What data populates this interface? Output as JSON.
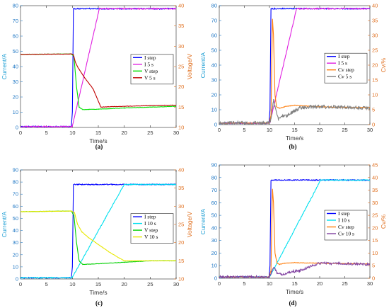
{
  "chart_data": [
    {
      "type": "line",
      "panel_label": "(a)",
      "xlabel": "Time/s",
      "ylabel_left": "Current/A",
      "ylabel_right": "Voltage/V",
      "xlim": [
        0,
        30
      ],
      "xticks": [
        0,
        5,
        10,
        15,
        20,
        25,
        30
      ],
      "ylim_left": [
        0,
        80
      ],
      "yticks_left": [
        0,
        10,
        20,
        30,
        40,
        50,
        60,
        70,
        80
      ],
      "ylim_right": [
        10,
        40
      ],
      "yticks_right": [
        10,
        15,
        20,
        25,
        30,
        35,
        40
      ],
      "legend_position": "right",
      "series": [
        {
          "name": "I step",
          "axis": "left",
          "color": "#0000ff",
          "noise": 0.4,
          "x": [
            0,
            9.8,
            10.0,
            10.2,
            30
          ],
          "y": [
            0.5,
            0.5,
            10,
            78,
            78
          ]
        },
        {
          "name": "I 5 s",
          "axis": "left",
          "color": "#e020e0",
          "noise": 0.4,
          "x": [
            0,
            9.8,
            10.0,
            15.2,
            30
          ],
          "y": [
            0.5,
            0.5,
            1,
            78,
            78
          ]
        },
        {
          "name": "V step",
          "axis": "right",
          "color": "#00e000",
          "noise": 0.05,
          "x": [
            0,
            9.8,
            10.3,
            10.8,
            11.3,
            12,
            15,
            20,
            25,
            30
          ],
          "y": [
            28,
            28.1,
            27.5,
            20,
            15,
            14.4,
            14.5,
            14.8,
            15,
            15.2
          ]
        },
        {
          "name": "V 5 s",
          "axis": "right",
          "color": "#c00000",
          "noise": 0.05,
          "x": [
            0,
            9.8,
            10.2,
            10.6,
            11.2,
            12.5,
            14,
            15.5,
            17,
            20,
            25,
            30
          ],
          "y": [
            28,
            28.1,
            27.9,
            26,
            24.5,
            22,
            19.5,
            15,
            15.1,
            15.2,
            15.4,
            15.5
          ]
        }
      ]
    },
    {
      "type": "line",
      "panel_label": "(b)",
      "xlabel": "Time/s",
      "ylabel_left": "Current/A",
      "ylabel_right": "Cv/%",
      "xlim": [
        0,
        30
      ],
      "xticks": [
        0,
        5,
        10,
        15,
        20,
        25,
        30
      ],
      "ylim_left": [
        0,
        80
      ],
      "yticks_left": [
        0,
        10,
        20,
        30,
        40,
        50,
        60,
        70,
        80
      ],
      "ylim_right": [
        0,
        40
      ],
      "yticks_right": [
        0,
        5,
        10,
        15,
        20,
        25,
        30,
        35,
        40
      ],
      "legend_position": "right",
      "series": [
        {
          "name": "I step",
          "axis": "left",
          "color": "#0000ff",
          "noise": 0.4,
          "x": [
            0,
            9.9,
            10.1,
            10.3,
            30
          ],
          "y": [
            1,
            1,
            10,
            78,
            78
          ]
        },
        {
          "name": "I 5 s",
          "axis": "left",
          "color": "#e020e0",
          "noise": 0.4,
          "x": [
            0,
            9.9,
            10.1,
            15.4,
            30
          ],
          "y": [
            1,
            1,
            1.5,
            78,
            78
          ]
        },
        {
          "name": "Cv step",
          "axis": "right",
          "color": "#ff7f0e",
          "noise": 0.1,
          "x": [
            0,
            9.9,
            10.3,
            10.6,
            10.8,
            11.1,
            11.4,
            12,
            13,
            15,
            20,
            25,
            30
          ],
          "y": [
            0.5,
            0.5,
            3,
            35.5,
            30,
            10,
            6,
            5.5,
            6,
            6.5,
            6,
            5.8,
            5.7
          ]
        },
        {
          "name": "Cv 5 s",
          "axis": "right",
          "color": "#808080",
          "noise": 0.6,
          "x": [
            0,
            9.9,
            10.3,
            10.8,
            11.2,
            11.8,
            12.5,
            13.5,
            14.5,
            16,
            18,
            20,
            25,
            30
          ],
          "y": [
            0.5,
            0.5,
            2,
            8,
            5,
            1.5,
            3,
            3,
            4,
            5.5,
            6,
            6,
            5.8,
            5.6
          ]
        }
      ]
    },
    {
      "type": "line",
      "panel_label": "(c)",
      "xlabel": "Time/s",
      "ylabel_left": "Current/A",
      "ylabel_right": "Voltage/V",
      "xlim": [
        0,
        30
      ],
      "xticks": [
        0,
        5,
        10,
        15,
        20,
        25,
        30
      ],
      "ylim_left": [
        0,
        90
      ],
      "yticks_left": [
        0,
        10,
        20,
        30,
        40,
        50,
        60,
        70,
        80,
        90
      ],
      "ylim_right": [
        10,
        40
      ],
      "yticks_right": [
        10,
        15,
        20,
        25,
        30,
        35,
        40
      ],
      "legend_position": "right",
      "series": [
        {
          "name": "I step",
          "axis": "left",
          "color": "#0000ff",
          "noise": 0.4,
          "x": [
            0,
            9.8,
            10.0,
            10.2,
            30
          ],
          "y": [
            1,
            1,
            10,
            78,
            78
          ]
        },
        {
          "name": "I 10 s",
          "axis": "left",
          "color": "#00e0ee",
          "noise": 0.4,
          "x": [
            0,
            9.8,
            10.0,
            20.0,
            30
          ],
          "y": [
            1,
            1,
            1.5,
            78,
            78
          ]
        },
        {
          "name": "V step",
          "axis": "right",
          "color": "#00d000",
          "noise": 0.05,
          "x": [
            0,
            9.8,
            10.3,
            10.8,
            11.3,
            12,
            15,
            20,
            25,
            30
          ],
          "y": [
            28.5,
            28.7,
            27.5,
            20,
            15,
            14,
            14.2,
            14.6,
            15,
            15
          ]
        },
        {
          "name": "V 10 s",
          "axis": "right",
          "color": "#e8e800",
          "noise": 0.05,
          "x": [
            0,
            9.8,
            10.4,
            11,
            11.8,
            13,
            15,
            17,
            19,
            20,
            25,
            30
          ],
          "y": [
            28.5,
            28.7,
            28.3,
            25,
            23,
            21.5,
            19.5,
            17.5,
            15.8,
            15,
            15,
            15
          ]
        }
      ]
    },
    {
      "type": "line",
      "panel_label": "(d)",
      "xlabel": "Time/s",
      "ylabel_left": "Current/A",
      "ylabel_right": "Cv/%",
      "xlim": [
        0,
        30
      ],
      "xticks": [
        0,
        5,
        10,
        15,
        20,
        25,
        30
      ],
      "ylim_left": [
        0,
        90
      ],
      "yticks_left": [
        0,
        10,
        20,
        30,
        40,
        50,
        60,
        70,
        80,
        90
      ],
      "ylim_right": [
        0,
        45
      ],
      "yticks_right": [
        0,
        5,
        10,
        15,
        20,
        25,
        30,
        35,
        40,
        45
      ],
      "legend_position": "right",
      "series": [
        {
          "name": "I step",
          "axis": "left",
          "color": "#0000ff",
          "noise": 0.4,
          "x": [
            0,
            9.9,
            10.1,
            10.3,
            30
          ],
          "y": [
            1,
            1,
            10,
            78,
            78
          ]
        },
        {
          "name": "I 10 s",
          "axis": "left",
          "color": "#00e0ee",
          "noise": 0.4,
          "x": [
            0,
            9.9,
            10.1,
            20.2,
            30
          ],
          "y": [
            1,
            1,
            1.5,
            78,
            78
          ]
        },
        {
          "name": "Cv step",
          "axis": "right",
          "color": "#ff7f0e",
          "noise": 0.1,
          "x": [
            0,
            9.9,
            10.3,
            10.6,
            10.8,
            11.1,
            11.5,
            12,
            13,
            15,
            20,
            25,
            30
          ],
          "y": [
            0.5,
            0.5,
            3,
            35.5,
            30,
            10,
            6,
            5.5,
            6,
            6.2,
            6,
            5.8,
            5.7
          ]
        },
        {
          "name": "Cv 10 s",
          "axis": "right",
          "color": "#8040a0",
          "noise": 0.5,
          "x": [
            0,
            9.9,
            10.3,
            10.9,
            11.5,
            12.5,
            14,
            16,
            18,
            20,
            25,
            30
          ],
          "y": [
            0.5,
            0.5,
            2,
            4.5,
            2,
            1.5,
            2.5,
            3,
            4.5,
            6,
            5.8,
            5.6
          ]
        }
      ]
    }
  ]
}
